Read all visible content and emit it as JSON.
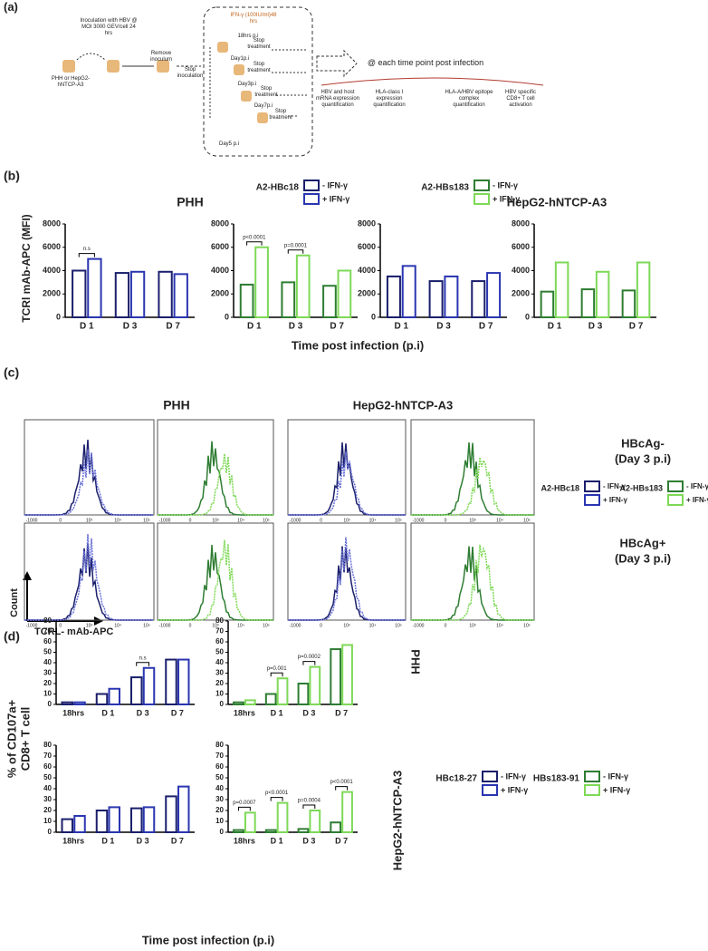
{
  "panel_a": {
    "label": "(a)",
    "inoculation": "Inoculation with HBV @ MOI 3000 GEV/cell 24 hrs",
    "cells": "PHH or HepG2-hNTCP-A3",
    "remove": "Remove inoculum",
    "stop_inoculation": "Stop inoculation",
    "ifn": "IFN-γ (100IU/ml)48 hrs",
    "timepoints": [
      "18hrs p.i",
      "Day1p.i",
      "Day3p.i",
      "Day7p.i"
    ],
    "day5": "Day5 p.i",
    "stop_treatment": "Stop treatment",
    "each_time_point": "@ each time point post infection",
    "readouts": [
      "HBV and host mRNA expression quantification",
      "HLA-class I expression quantification",
      "HLA-A/HBV epitope complex quantification",
      "HBV specific CD8+ T cell activation"
    ]
  },
  "panel_b": {
    "label": "(b)",
    "ylabel": "TCRl mAb-APC (MFI)",
    "xlabel": "Time post infection (p.i)",
    "group_titles": [
      "PHH",
      "HepG2-hNTCP-A3"
    ],
    "legend_groups": [
      "A2-HBc18",
      "A2-HBs183"
    ],
    "charts": [
      {
        "categories": [
          "D 1",
          "D 3",
          "D 7"
        ],
        "ylim": [
          0,
          8000
        ],
        "yticks": [
          0,
          2000,
          4000,
          6000,
          8000
        ],
        "annotations": [
          "n.s",
          null,
          null
        ],
        "series": [
          {
            "name": "- IFN-γ",
            "color": "#1b1f6b",
            "values": [
              4000,
              3800,
              3900
            ]
          },
          {
            "name": "+ IFN-γ",
            "color": "#2a36b0",
            "values": [
              5000,
              3900,
              3700
            ]
          }
        ]
      },
      {
        "categories": [
          "D 1",
          "D 3",
          "D 7"
        ],
        "ylim": [
          0,
          8000
        ],
        "yticks": [
          0,
          2000,
          4000,
          6000,
          8000
        ],
        "annotations": [
          "p<0.0001",
          "p=0.0001",
          null
        ],
        "series": [
          {
            "name": "- IFN-γ",
            "color": "#2e7d32",
            "values": [
              2800,
              3000,
              2700
            ]
          },
          {
            "name": "+ IFN-γ",
            "color": "#7ed957",
            "values": [
              6000,
              5300,
              4000
            ]
          }
        ]
      },
      {
        "categories": [
          "D 1",
          "D 3",
          "D 7"
        ],
        "ylim": [
          0,
          8000
        ],
        "yticks": [
          0,
          2000,
          4000,
          6000,
          8000
        ],
        "annotations": [
          null,
          null,
          null
        ],
        "series": [
          {
            "name": "- IFN-γ",
            "color": "#1b1f6b",
            "values": [
              3500,
              3100,
              3100
            ]
          },
          {
            "name": "+ IFN-γ",
            "color": "#2a36b0",
            "values": [
              4400,
              3500,
              3800
            ]
          }
        ]
      },
      {
        "categories": [
          "D 1",
          "D 3",
          "D 7"
        ],
        "ylim": [
          0,
          8000
        ],
        "yticks": [
          0,
          2000,
          4000,
          6000,
          8000
        ],
        "annotations": [
          null,
          null,
          null
        ],
        "series": [
          {
            "name": "- IFN-γ",
            "color": "#2e7d32",
            "values": [
              2200,
              2400,
              2300
            ]
          },
          {
            "name": "+ IFN-γ",
            "color": "#7ed957",
            "values": [
              4700,
              3900,
              4700
            ]
          }
        ]
      }
    ]
  },
  "panel_c": {
    "label": "(c)",
    "group_titles": [
      "PHH",
      "HepG2-hNTCP-A3"
    ],
    "row_labels": [
      [
        "HBcAg-",
        "(Day 3 p.i)"
      ],
      [
        "HBcAg+",
        "(Day 3 p.i)"
      ]
    ],
    "ylabel": "Count",
    "xlabel": "TCRL- mAb-APC",
    "histogram_xticks": [
      "-1000",
      "0",
      "10³",
      "10⁴",
      "10⁵"
    ],
    "legend_groups": [
      "A2-HBc18",
      "A2-HBs183"
    ]
  },
  "panel_d": {
    "label": "(d)",
    "ylabel": [
      "% of CD107a+",
      "CD8+ T cell"
    ],
    "xlabel": "Time post infection (p.i)",
    "row_labels": [
      "PHH",
      "HepG2-hNTCP-A3"
    ],
    "legend_groups": [
      "HBc18-27",
      "HBs183-91"
    ],
    "charts": [
      {
        "categories": [
          "18hrs",
          "D 1",
          "D 3",
          "D 7"
        ],
        "ylim": [
          0,
          80
        ],
        "yticks": [
          0,
          10,
          20,
          30,
          40,
          50,
          60,
          70,
          80
        ],
        "annotations": [
          null,
          null,
          "n.s",
          null
        ],
        "series": [
          {
            "name": "- IFN-γ",
            "color": "#1b1f6b",
            "values": [
              2,
              10,
              26,
              43
            ]
          },
          {
            "name": "+ IFN-γ",
            "color": "#2a36b0",
            "values": [
              2,
              15,
              35,
              43
            ]
          }
        ]
      },
      {
        "categories": [
          "18hrs",
          "D 1",
          "D 3",
          "D 7"
        ],
        "ylim": [
          0,
          80
        ],
        "yticks": [
          0,
          10,
          20,
          30,
          40,
          50,
          60,
          70,
          80
        ],
        "annotations": [
          null,
          "p=0.001",
          "p=0.0002",
          null
        ],
        "series": [
          {
            "name": "- IFN-γ",
            "color": "#2e7d32",
            "values": [
              2,
              10,
              20,
              53
            ]
          },
          {
            "name": "+ IFN-γ",
            "color": "#7ed957",
            "values": [
              4,
              25,
              36,
              57
            ]
          }
        ]
      },
      {
        "categories": [
          "18hrs",
          "D 1",
          "D 3",
          "D 7"
        ],
        "ylim": [
          0,
          80
        ],
        "yticks": [
          0,
          10,
          20,
          30,
          40,
          50,
          60,
          70,
          80
        ],
        "annotations": [
          null,
          null,
          null,
          null
        ],
        "series": [
          {
            "name": "- IFN-γ",
            "color": "#1b1f6b",
            "values": [
              12,
              20,
              22,
              33
            ]
          },
          {
            "name": "+ IFN-γ",
            "color": "#2a36b0",
            "values": [
              15,
              23,
              23,
              42
            ]
          }
        ]
      },
      {
        "categories": [
          "18hrs",
          "D 1",
          "D 3",
          "D 7"
        ],
        "ylim": [
          0,
          80
        ],
        "yticks": [
          0,
          10,
          20,
          30,
          40,
          50,
          60,
          70,
          80
        ],
        "annotations": [
          "p=0.0007",
          "p<0.0001",
          "p=0.0004",
          "p<0.0001"
        ],
        "series": [
          {
            "name": "- IFN-γ",
            "color": "#2e7d32",
            "values": [
              2,
              2,
              3,
              9
            ]
          },
          {
            "name": "+ IFN-γ",
            "color": "#7ed957",
            "values": [
              18,
              27,
              20,
              37
            ]
          }
        ]
      }
    ]
  }
}
